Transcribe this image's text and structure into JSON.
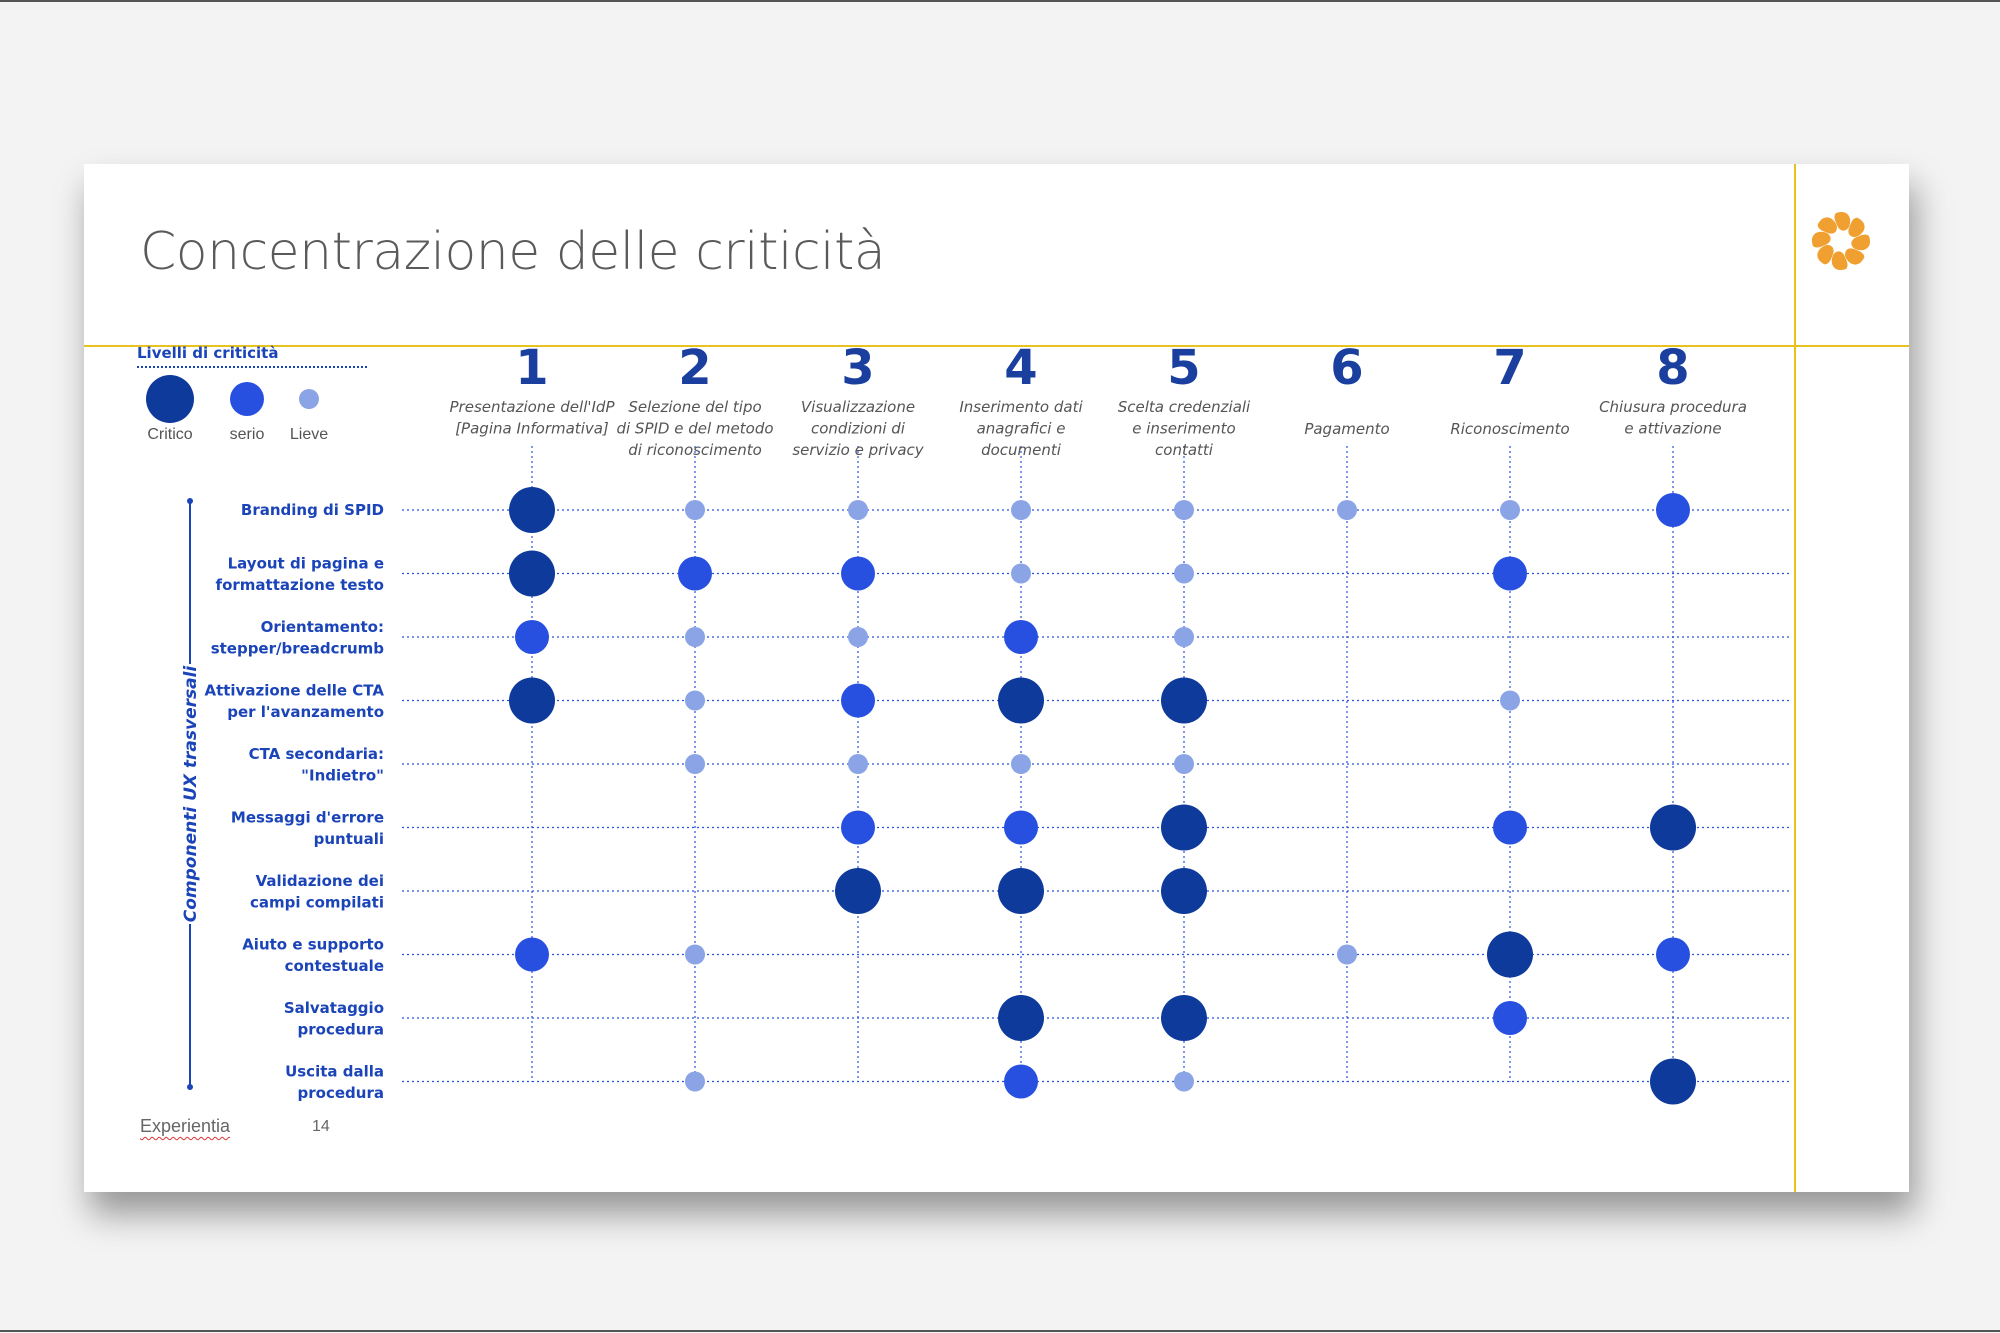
{
  "title": "Concentrazione delle criticità",
  "footer": {
    "brand": "Experientia",
    "page": "14"
  },
  "legend": {
    "title": "Livelli di criticità",
    "levels": [
      {
        "key": "critico",
        "label": "Critico",
        "color": "#0e3a9c"
      },
      {
        "key": "serio",
        "label": "serio",
        "color": "#2850e0"
      },
      {
        "key": "lieve",
        "label": "Lieve",
        "color": "#8ba4e6"
      }
    ]
  },
  "colors": {
    "accent_yellow": "#e8c21e",
    "logo_orange": "#f0a030",
    "primary_blue": "#1a44b8"
  },
  "chart_data": {
    "type": "bubble-matrix",
    "title": "Concentrazione delle criticità",
    "y_axis_title": "Componenti UX trasversali",
    "columns": [
      {
        "number": "1",
        "lines": [
          "Presentazione dell'IdP",
          "[Pagina Informativa]"
        ]
      },
      {
        "number": "2",
        "lines": [
          "Selezione del tipo",
          "di SPID e del metodo",
          "di riconoscimento"
        ]
      },
      {
        "number": "3",
        "lines": [
          "Visualizzazione",
          "condizioni di",
          "servizio e privacy"
        ]
      },
      {
        "number": "4",
        "lines": [
          "Inserimento dati",
          "anagrafici e",
          "documenti"
        ]
      },
      {
        "number": "5",
        "lines": [
          "Scelta credenziali",
          "e inserimento",
          "contatti"
        ]
      },
      {
        "number": "6",
        "lines": [
          "Pagamento"
        ]
      },
      {
        "number": "7",
        "lines": [
          "Riconoscimento"
        ]
      },
      {
        "number": "8",
        "lines": [
          "Chiusura procedura",
          "e attivazione"
        ]
      }
    ],
    "rows": [
      {
        "lines": [
          "Branding di SPID"
        ],
        "values": [
          3,
          1,
          1,
          1,
          1,
          1,
          1,
          2
        ]
      },
      {
        "lines": [
          "Layout di pagina e",
          "formattazione testo"
        ],
        "values": [
          3,
          2,
          2,
          1,
          1,
          0,
          2,
          0
        ]
      },
      {
        "lines": [
          "Orientamento:",
          "stepper/breadcrumb"
        ],
        "values": [
          2,
          1,
          1,
          2,
          1,
          0,
          0,
          0
        ]
      },
      {
        "lines": [
          "Attivazione delle CTA",
          "per l'avanzamento"
        ],
        "values": [
          3,
          1,
          2,
          3,
          3,
          0,
          1,
          0
        ]
      },
      {
        "lines": [
          "CTA secondaria:",
          "\"Indietro\""
        ],
        "values": [
          0,
          1,
          1,
          1,
          1,
          0,
          0,
          0
        ]
      },
      {
        "lines": [
          "Messaggi d'errore",
          "puntuali"
        ],
        "values": [
          0,
          0,
          2,
          2,
          3,
          0,
          2,
          3
        ]
      },
      {
        "lines": [
          "Validazione dei",
          "campi compilati"
        ],
        "values": [
          0,
          0,
          3,
          3,
          3,
          0,
          0,
          0
        ]
      },
      {
        "lines": [
          "Aiuto e supporto",
          "contestuale"
        ],
        "values": [
          2,
          1,
          0,
          0,
          0,
          1,
          3,
          2
        ]
      },
      {
        "lines": [
          "Salvataggio",
          "procedura"
        ],
        "values": [
          0,
          0,
          0,
          3,
          3,
          0,
          2,
          0
        ]
      },
      {
        "lines": [
          "Uscita dalla",
          "procedura"
        ],
        "values": [
          0,
          1,
          0,
          2,
          1,
          0,
          0,
          3
        ]
      }
    ],
    "value_scale": {
      "0": "nessuna",
      "1": "Lieve",
      "2": "serio",
      "3": "Critico"
    },
    "grid": true
  }
}
